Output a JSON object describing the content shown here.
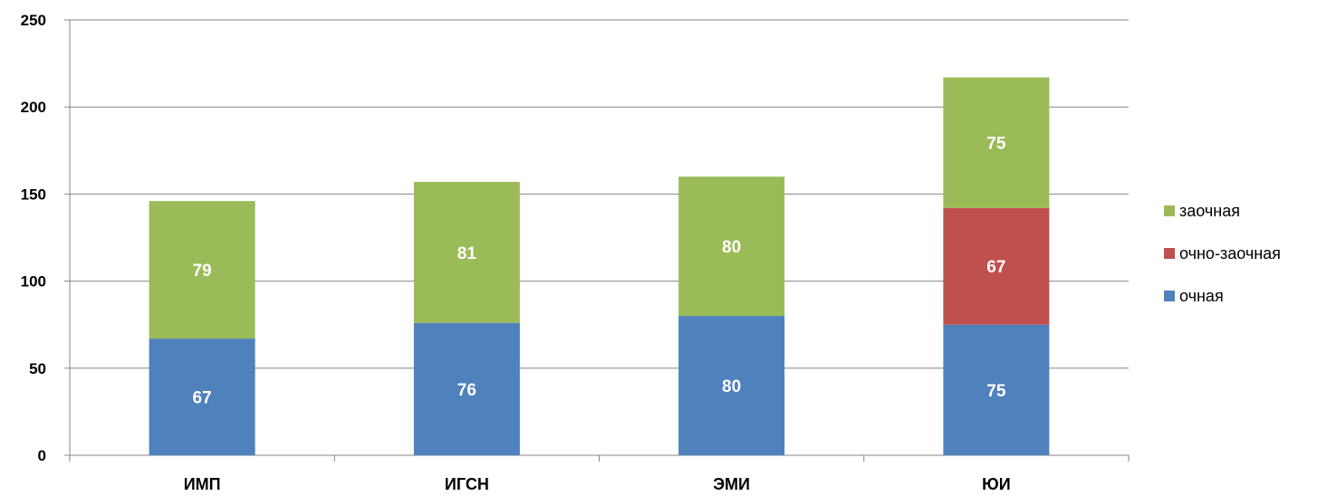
{
  "chart_data": {
    "type": "bar",
    "stacked": true,
    "categories": [
      "ИМП",
      "ИГСН",
      "ЭМИ",
      "ЮИ"
    ],
    "series": [
      {
        "name": "очная",
        "values": [
          67,
          76,
          80,
          75
        ],
        "color": "#4F81BD"
      },
      {
        "name": "очно-заочная",
        "values": [
          0,
          0,
          0,
          67
        ],
        "color": "#C0504D"
      },
      {
        "name": "заочная",
        "values": [
          79,
          81,
          80,
          75
        ],
        "color": "#9BBB59"
      }
    ],
    "ylim": [
      0,
      250
    ],
    "yticks": [
      0,
      50,
      100,
      150,
      200,
      250
    ],
    "grid": true,
    "legend_position": "right",
    "legend_order": [
      "заочная",
      "очно-заочная",
      "очная"
    ],
    "data_labels": true
  }
}
